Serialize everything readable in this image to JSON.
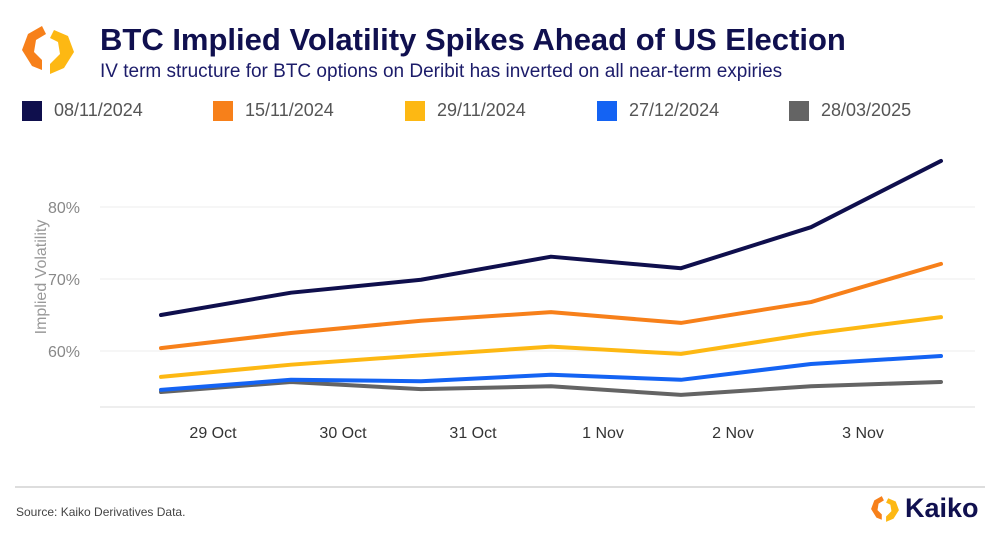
{
  "header": {
    "title": "BTC Implied Volatility Spikes Ahead of US Election",
    "subtitle": "IV term structure for BTC options on Deribit has inverted on all near-term expiries"
  },
  "footer": {
    "source": "Source: Kaiko Derivatives Data.",
    "brand": "Kaiko"
  },
  "colors": {
    "accent": "#f7941d",
    "title": "#10104f"
  },
  "chart_data": {
    "type": "line",
    "title": "BTC Implied Volatility Spikes Ahead of US Election",
    "xlabel": "",
    "ylabel": "Implied Volatility",
    "x": [
      -0.4,
      0.6,
      1.6,
      2.6,
      3.6,
      4.6,
      5.6
    ],
    "x_note": "days after 29 Oct",
    "xticks": [
      0,
      1,
      2,
      3,
      4,
      5
    ],
    "xtick_labels": [
      "29 Oct",
      "30 Oct",
      "31 Oct",
      "1 Nov",
      "2 Nov",
      "3 Nov"
    ],
    "yticks": [
      60,
      70,
      80
    ],
    "ytick_labels": [
      "60%",
      "70%",
      "80%"
    ],
    "ylim": [
      50,
      90
    ],
    "grid": true,
    "legend_position": "top",
    "series": [
      {
        "name": "08/11/2024",
        "color": "#0f0f4d",
        "values": [
          65.0,
          68.1,
          69.9,
          73.1,
          71.5,
          77.2,
          86.4
        ]
      },
      {
        "name": "15/11/2024",
        "color": "#f7801a",
        "values": [
          60.4,
          62.5,
          64.2,
          65.4,
          63.9,
          66.8,
          72.1
        ]
      },
      {
        "name": "29/11/2024",
        "color": "#fdb813",
        "values": [
          56.4,
          58.1,
          59.4,
          60.6,
          59.6,
          62.4,
          64.7
        ]
      },
      {
        "name": "27/12/2024",
        "color": "#1463f3",
        "values": [
          54.6,
          56.0,
          55.8,
          56.7,
          56.0,
          58.2,
          59.3
        ]
      },
      {
        "name": "28/03/2025",
        "color": "#646464",
        "values": [
          54.3,
          55.7,
          54.7,
          55.1,
          53.9,
          55.1,
          55.7
        ]
      }
    ]
  }
}
